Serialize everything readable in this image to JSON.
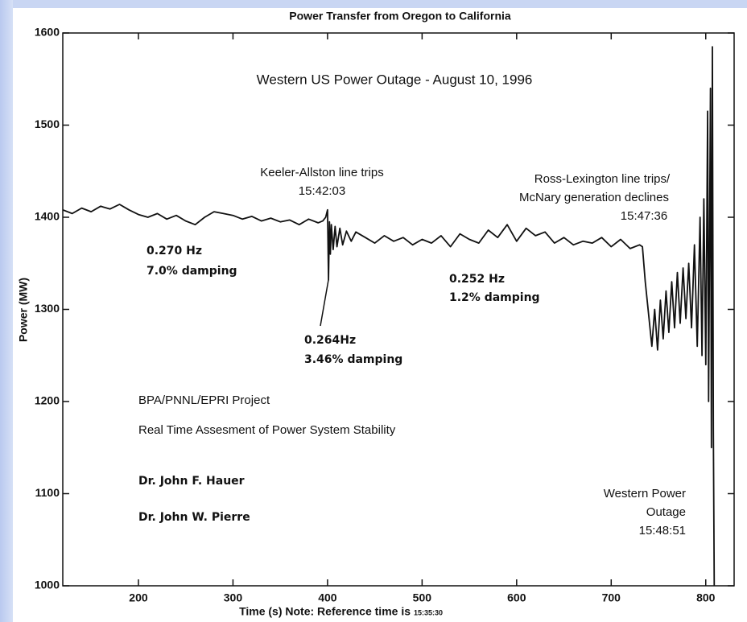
{
  "chart_data": {
    "type": "line",
    "title": "Power Transfer from Oregon to California",
    "subtitle": "Western US Power Outage - August 10, 1996",
    "x_label": "Time (s) Note: Reference time is",
    "x_label_note": "15:35:30",
    "y_label": "Power (MW)",
    "xlim": [
      120,
      830
    ],
    "ylim": [
      1000,
      1600
    ],
    "xticks": [
      200,
      300,
      400,
      500,
      600,
      700,
      800
    ],
    "yticks": [
      1000,
      1100,
      1200,
      1300,
      1400,
      1500,
      1600
    ],
    "color": "#111111",
    "annotations": [
      "Keeler-Allston line trips",
      "15:42:03",
      "Ross-Lexington line trips/",
      "McNary generation declines",
      "15:47:36",
      "0.270 Hz",
      "7.0% damping",
      "0.252 Hz",
      "1.2% damping",
      "0.264Hz",
      "3.46% damping",
      "BPA/PNNL/EPRI Project",
      "Real Time Assesment of Power System Stability",
      "Dr. John F. Hauer",
      "Dr. John W. Pierre",
      "Western Power",
      "Outage",
      "15:48:51"
    ],
    "x": [
      120,
      130,
      140,
      150,
      160,
      170,
      180,
      190,
      200,
      210,
      220,
      230,
      240,
      250,
      260,
      270,
      280,
      290,
      300,
      310,
      320,
      330,
      340,
      350,
      360,
      370,
      380,
      390,
      395,
      398,
      400,
      401,
      402,
      403,
      404,
      406,
      408,
      410,
      413,
      416,
      420,
      425,
      430,
      440,
      450,
      460,
      470,
      480,
      490,
      500,
      510,
      520,
      530,
      540,
      550,
      560,
      570,
      580,
      590,
      600,
      610,
      620,
      630,
      640,
      650,
      660,
      670,
      680,
      690,
      700,
      710,
      720,
      730,
      733,
      736,
      740,
      743,
      746,
      749,
      752,
      755,
      758,
      761,
      764,
      767,
      770,
      773,
      776,
      779,
      782,
      785,
      788,
      791,
      794,
      796,
      798,
      800,
      802,
      803,
      805,
      806,
      807,
      808,
      809
    ],
    "values": [
      1408,
      1404,
      1410,
      1406,
      1412,
      1409,
      1414,
      1408,
      1403,
      1400,
      1404,
      1398,
      1402,
      1396,
      1392,
      1400,
      1406,
      1404,
      1402,
      1398,
      1401,
      1396,
      1399,
      1395,
      1397,
      1392,
      1398,
      1394,
      1396,
      1400,
      1408,
      1332,
      1395,
      1360,
      1392,
      1365,
      1390,
      1368,
      1388,
      1370,
      1385,
      1374,
      1384,
      1378,
      1372,
      1380,
      1374,
      1378,
      1370,
      1376,
      1372,
      1380,
      1368,
      1382,
      1376,
      1372,
      1386,
      1378,
      1392,
      1374,
      1388,
      1380,
      1384,
      1372,
      1378,
      1370,
      1374,
      1372,
      1378,
      1368,
      1376,
      1366,
      1370,
      1368,
      1330,
      1290,
      1260,
      1300,
      1256,
      1310,
      1268,
      1320,
      1275,
      1330,
      1280,
      1340,
      1285,
      1345,
      1290,
      1350,
      1280,
      1370,
      1260,
      1400,
      1250,
      1420,
      1240,
      1515,
      1200,
      1540,
      1150,
      1585,
      1170,
      1000
    ]
  }
}
